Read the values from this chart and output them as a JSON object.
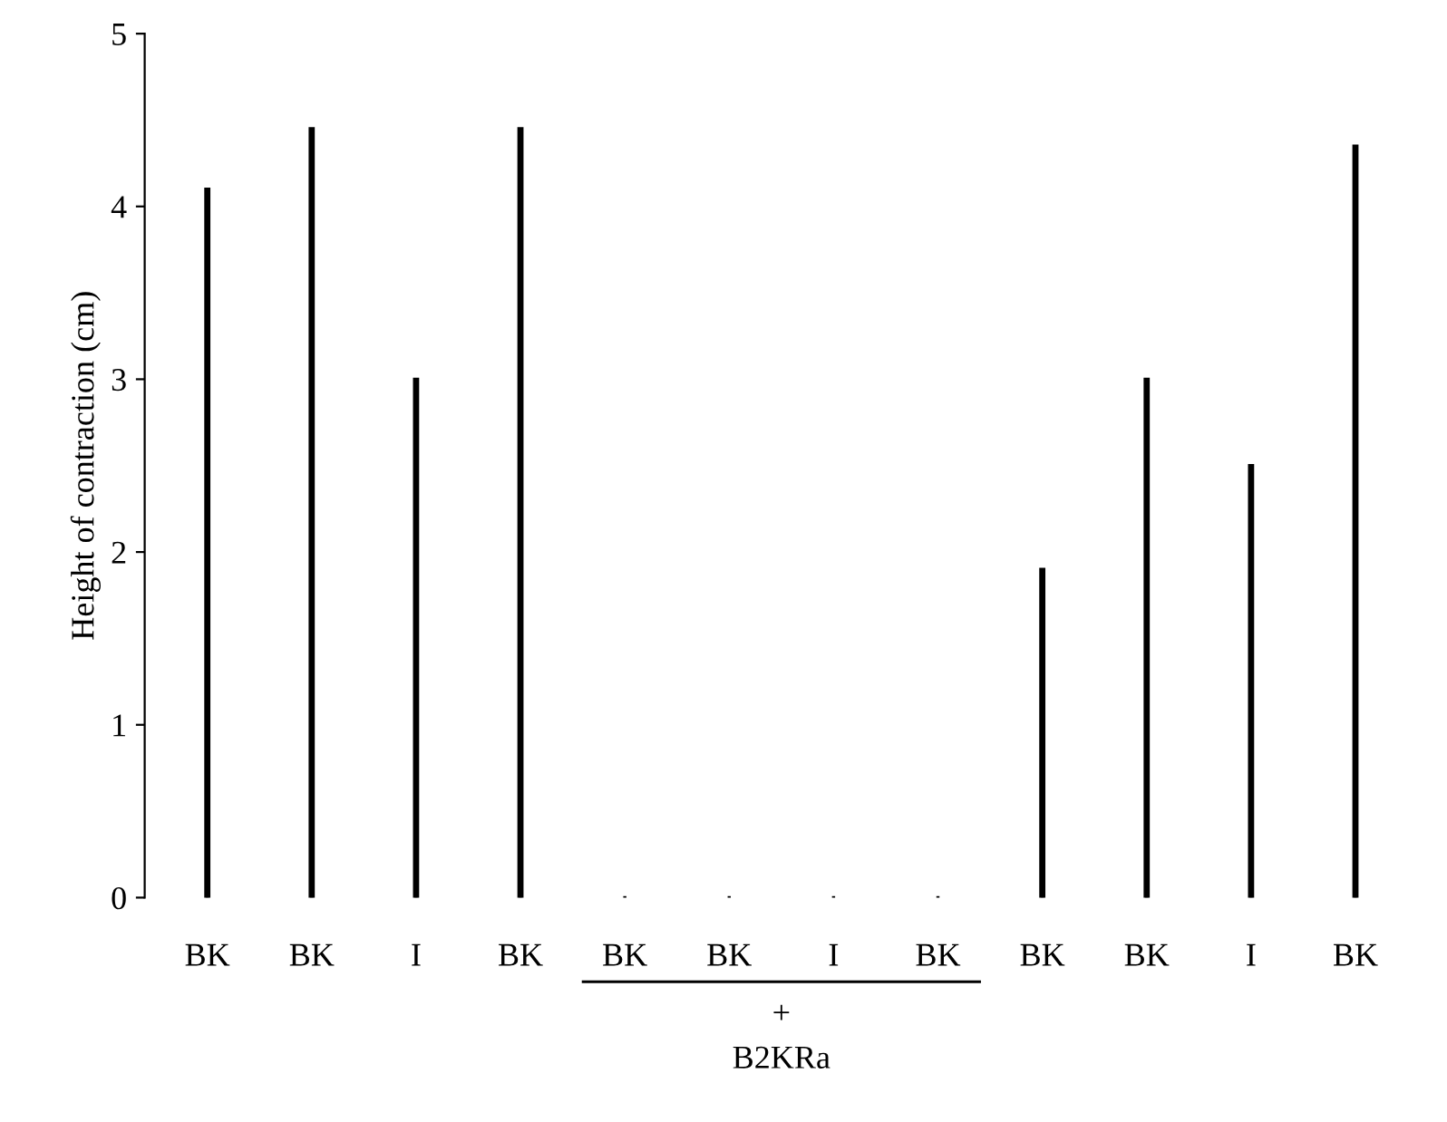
{
  "chart_data": {
    "type": "bar",
    "ylabel": "Height of contraction (cm)",
    "categories": [
      "BK",
      "BK",
      "I",
      "BK",
      "BK",
      "BK",
      "I",
      "BK",
      "BK",
      "BK",
      "I",
      "BK"
    ],
    "values": [
      4.1,
      4.45,
      3.0,
      4.45,
      0,
      0,
      0,
      0,
      1.9,
      3.0,
      2.5,
      4.35
    ],
    "color": "#000000",
    "ylim": [
      0,
      5
    ],
    "yticks": [
      0,
      1,
      2,
      3,
      4,
      5
    ],
    "grid": false,
    "annotations": [
      "+",
      "B2KRa"
    ]
  }
}
